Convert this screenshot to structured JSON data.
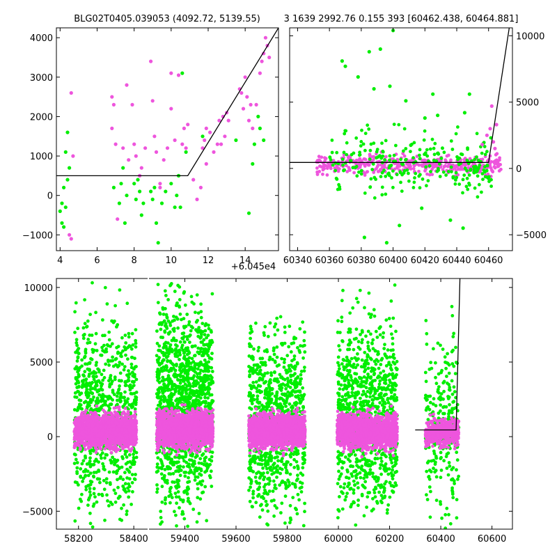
{
  "header": {
    "title_left": "BLG02T0405.039053 (4092.72, 5139.55)",
    "title_right": "3 1639 2992.76 0.155 393 [60462.438, 60464.881]"
  },
  "colors": {
    "green": "#00ee00",
    "magenta": "#ee55dd",
    "model_line": "#000000",
    "axes": "#000000"
  },
  "chart_data": [
    {
      "id": "top-left",
      "type": "scatter",
      "xlim": [
        3.8,
        15.8
      ],
      "ylim": [
        -1400,
        4250
      ],
      "x_offset_label": "+6.045e4",
      "xticks": [
        4,
        6,
        8,
        10,
        12,
        14
      ],
      "xtick_labels": [
        "4",
        "6",
        "8",
        "10",
        "12",
        "14"
      ],
      "yticks": [
        -1000,
        0,
        1000,
        2000,
        3000,
        4000
      ],
      "ytick_labels": [
        "−1000",
        "0",
        "1000",
        "2000",
        "3000",
        "4000"
      ],
      "series": [
        {
          "color": "magenta",
          "points": [
            [
              4.6,
              2600
            ],
            [
              4.7,
              1000
            ],
            [
              4.6,
              -1100
            ],
            [
              4.5,
              -1000
            ],
            [
              6.8,
              2500
            ],
            [
              6.9,
              2300
            ],
            [
              6.8,
              1700
            ],
            [
              7.0,
              1300
            ],
            [
              7.1,
              -600
            ],
            [
              7.4,
              1200
            ],
            [
              7.6,
              2800
            ],
            [
              7.9,
              2300
            ],
            [
              8.0,
              1300
            ],
            [
              8.1,
              1000
            ],
            [
              8.4,
              700
            ],
            [
              8.6,
              1200
            ],
            [
              8.9,
              3400
            ],
            [
              9.0,
              2400
            ],
            [
              9.1,
              1500
            ],
            [
              9.2,
              1100
            ],
            [
              9.4,
              200
            ],
            [
              9.6,
              900
            ],
            [
              9.8,
              1200
            ],
            [
              10.0,
              3100
            ],
            [
              10.0,
              2200
            ],
            [
              10.2,
              1400
            ],
            [
              10.4,
              3050
            ],
            [
              10.6,
              1300
            ],
            [
              10.7,
              1700
            ],
            [
              10.8,
              1200
            ],
            [
              10.9,
              1800
            ],
            [
              11.2,
              400
            ],
            [
              11.4,
              -100
            ],
            [
              11.6,
              200
            ],
            [
              11.7,
              1200
            ],
            [
              11.8,
              1400
            ],
            [
              11.9,
              1700
            ],
            [
              12.1,
              1600
            ],
            [
              12.3,
              1100
            ],
            [
              12.5,
              1300
            ],
            [
              12.6,
              1900
            ],
            [
              12.8,
              2000
            ],
            [
              12.9,
              1500
            ],
            [
              13.0,
              2100
            ],
            [
              13.1,
              1900
            ],
            [
              13.7,
              2700
            ],
            [
              13.8,
              2600
            ],
            [
              13.9,
              2200
            ],
            [
              14.0,
              3000
            ],
            [
              14.1,
              2500
            ],
            [
              14.2,
              1900
            ],
            [
              14.3,
              2300
            ],
            [
              14.4,
              1700
            ],
            [
              14.6,
              2300
            ],
            [
              14.8,
              3100
            ],
            [
              14.9,
              3400
            ],
            [
              15.0,
              3600
            ],
            [
              15.1,
              4000
            ],
            [
              15.2,
              3800
            ],
            [
              15.3,
              3500
            ],
            [
              12.7,
              1300
            ],
            [
              11.9,
              800
            ],
            [
              9.4,
              300
            ],
            [
              8.3,
              500
            ],
            [
              7.7,
              900
            ]
          ]
        },
        {
          "color": "green",
          "points": [
            [
              4.0,
              -400
            ],
            [
              4.1,
              -700
            ],
            [
              4.1,
              -200
            ],
            [
              4.2,
              200
            ],
            [
              4.2,
              -800
            ],
            [
              4.3,
              1100
            ],
            [
              4.4,
              1600
            ],
            [
              4.3,
              -300
            ],
            [
              4.4,
              400
            ],
            [
              4.5,
              700
            ],
            [
              6.9,
              200
            ],
            [
              7.2,
              -200
            ],
            [
              7.3,
              300
            ],
            [
              7.4,
              700
            ],
            [
              7.5,
              -700
            ],
            [
              7.6,
              0
            ],
            [
              8.0,
              300
            ],
            [
              8.1,
              -100
            ],
            [
              8.2,
              400
            ],
            [
              8.3,
              100
            ],
            [
              8.4,
              -500
            ],
            [
              8.5,
              -200
            ],
            [
              8.9,
              100
            ],
            [
              9.0,
              -100
            ],
            [
              9.1,
              200
            ],
            [
              9.2,
              -700
            ],
            [
              9.3,
              -1200
            ],
            [
              9.5,
              -200
            ],
            [
              9.7,
              100
            ],
            [
              10.0,
              300
            ],
            [
              10.2,
              -300
            ],
            [
              10.3,
              0
            ],
            [
              10.4,
              500
            ],
            [
              10.5,
              -300
            ],
            [
              10.6,
              3100
            ],
            [
              10.8,
              1100
            ],
            [
              11.7,
              1500
            ],
            [
              13.5,
              1400
            ],
            [
              14.2,
              -450
            ],
            [
              14.4,
              800
            ],
            [
              14.5,
              1300
            ],
            [
              14.7,
              2000
            ],
            [
              14.8,
              1700
            ],
            [
              15.0,
              1400
            ]
          ]
        }
      ],
      "model_line": [
        [
          3.8,
          500
        ],
        [
          10.9,
          500
        ],
        [
          15.8,
          4250
        ]
      ]
    },
    {
      "id": "top-right",
      "type": "scatter",
      "xlim": [
        60335,
        60475
      ],
      "ylim": [
        -6200,
        10600
      ],
      "xticks": [
        60340,
        60360,
        60380,
        60400,
        60420,
        60440,
        60460
      ],
      "xtick_labels": [
        "60340",
        "60360",
        "60380",
        "60400",
        "60420",
        "60440",
        "60460"
      ],
      "yticks": [
        -5000,
        0,
        5000,
        10000
      ],
      "ytick_labels": [
        "−5000",
        "0",
        "5000",
        "10000"
      ],
      "bands": [
        {
          "color": "magenta",
          "x": [
            60352,
            60468
          ],
          "y_mean": 300,
          "y_spread": 700,
          "count": 420
        },
        {
          "color": "green",
          "x": [
            60360,
            60462
          ],
          "y_mean": 300,
          "y_spread": 2400,
          "count": 260
        }
      ],
      "series": [
        {
          "color": "green",
          "points": [
            [
              60368,
              8100
            ],
            [
              60370,
              7700
            ],
            [
              60378,
              6900
            ],
            [
              60385,
              8800
            ],
            [
              60388,
              6000
            ],
            [
              60392,
              9000
            ],
            [
              60398,
              6200
            ],
            [
              60400,
              10400
            ],
            [
              60408,
              5100
            ],
            [
              60420,
              3800
            ],
            [
              60425,
              5600
            ],
            [
              60428,
              4000
            ],
            [
              60445,
              4200
            ],
            [
              60448,
              5600
            ],
            [
              60382,
              -5200
            ],
            [
              60396,
              -5600
            ],
            [
              60404,
              -4300
            ],
            [
              60418,
              -3000
            ],
            [
              60436,
              -3900
            ],
            [
              60444,
              -4500
            ]
          ]
        },
        {
          "color": "magenta",
          "points": [
            [
              60461,
              3000
            ],
            [
              60462,
              4700
            ],
            [
              60463,
              2000
            ],
            [
              60464,
              1500
            ],
            [
              60465,
              3300
            ],
            [
              60456,
              1800
            ],
            [
              60459,
              2500
            ]
          ]
        }
      ],
      "model_line": [
        [
          60335,
          450
        ],
        [
          60460,
          450
        ],
        [
          60473,
          10600
        ]
      ]
    },
    {
      "id": "bottom",
      "type": "scatter",
      "xlim": [
        58120,
        60680
      ],
      "axis_break": [
        58450,
        59260
      ],
      "ylim": [
        -6200,
        10600
      ],
      "xticks": [
        58200,
        58400,
        59400,
        59600,
        59800,
        60000,
        60200,
        60400,
        60600
      ],
      "xtick_labels": [
        "58200",
        "58400",
        "59400",
        "59600",
        "59800",
        "60000",
        "60200",
        "60400",
        "60600"
      ],
      "yticks": [
        -5000,
        0,
        5000,
        10000
      ],
      "ytick_labels": [
        "−5000",
        "0",
        "5000",
        "10000"
      ],
      "bands": [
        {
          "color": "green",
          "x": [
            58185,
            58410
          ],
          "y_mean": 1500,
          "y_spread": 6000,
          "count": 900
        },
        {
          "color": "magenta",
          "x": [
            58185,
            58410
          ],
          "y_mean": 400,
          "y_spread": 1100,
          "count": 1400
        },
        {
          "color": "green",
          "x": [
            59290,
            59510
          ],
          "y_mean": 2200,
          "y_spread": 6500,
          "count": 1400
        },
        {
          "color": "magenta",
          "x": [
            59290,
            59510
          ],
          "y_mean": 500,
          "y_spread": 1200,
          "count": 1600
        },
        {
          "color": "green",
          "x": [
            59650,
            59870
          ],
          "y_mean": 1000,
          "y_spread": 6000,
          "count": 900
        },
        {
          "color": "magenta",
          "x": [
            59650,
            59870
          ],
          "y_mean": 400,
          "y_spread": 1100,
          "count": 1500
        },
        {
          "color": "green",
          "x": [
            59995,
            60230
          ],
          "y_mean": 1500,
          "y_spread": 6000,
          "count": 1000
        },
        {
          "color": "magenta",
          "x": [
            59995,
            60230
          ],
          "y_mean": 400,
          "y_spread": 1100,
          "count": 1500
        },
        {
          "color": "green",
          "x": [
            60340,
            60470
          ],
          "y_mean": 800,
          "y_spread": 5500,
          "count": 260
        },
        {
          "color": "magenta",
          "x": [
            60340,
            60470
          ],
          "y_mean": 300,
          "y_spread": 900,
          "count": 400
        }
      ],
      "model_line": [
        [
          60300,
          450
        ],
        [
          60460,
          450
        ],
        [
          60475,
          10600
        ]
      ]
    }
  ]
}
